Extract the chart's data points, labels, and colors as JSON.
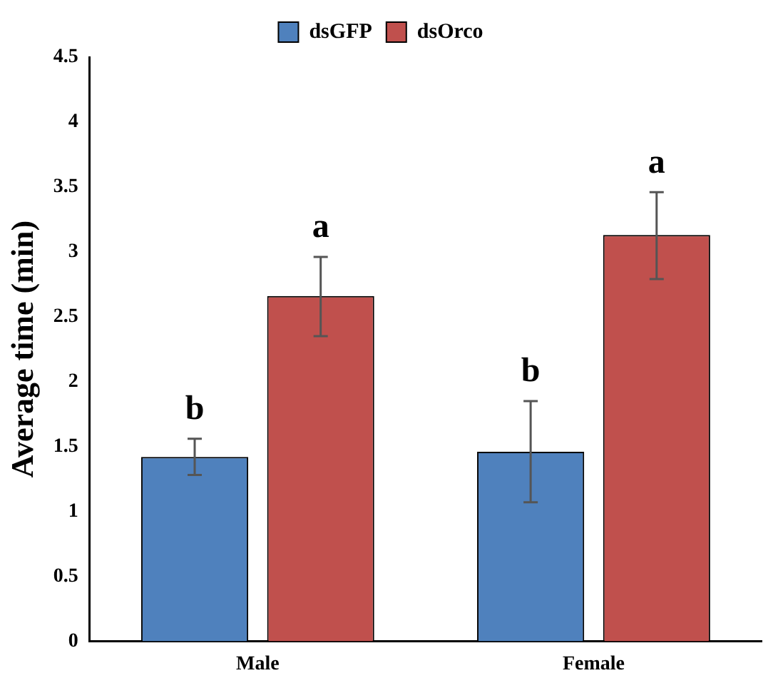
{
  "chart_data": {
    "type": "bar",
    "ylabel": "Average time (min)",
    "categories": [
      "Male",
      "Female"
    ],
    "series": [
      {
        "name": "dsGFP",
        "color": "#4f81bd",
        "values": [
          1.42,
          1.46
        ],
        "errors": [
          [
            1.28,
            1.56
          ],
          [
            1.07,
            1.85
          ]
        ],
        "value_labels": [
          "b",
          "b"
        ]
      },
      {
        "name": "dsOrco",
        "color": "#c0504d",
        "values": [
          2.66,
          3.13
        ],
        "errors": [
          [
            2.35,
            2.96
          ],
          [
            2.79,
            3.46
          ]
        ],
        "value_labels": [
          "a",
          "a"
        ]
      }
    ],
    "ylim": [
      0,
      4.5
    ],
    "yticks": [
      0,
      0.5,
      1,
      1.5,
      2,
      2.5,
      3,
      3.5,
      4,
      4.5
    ],
    "grid": false,
    "legend": "top"
  }
}
